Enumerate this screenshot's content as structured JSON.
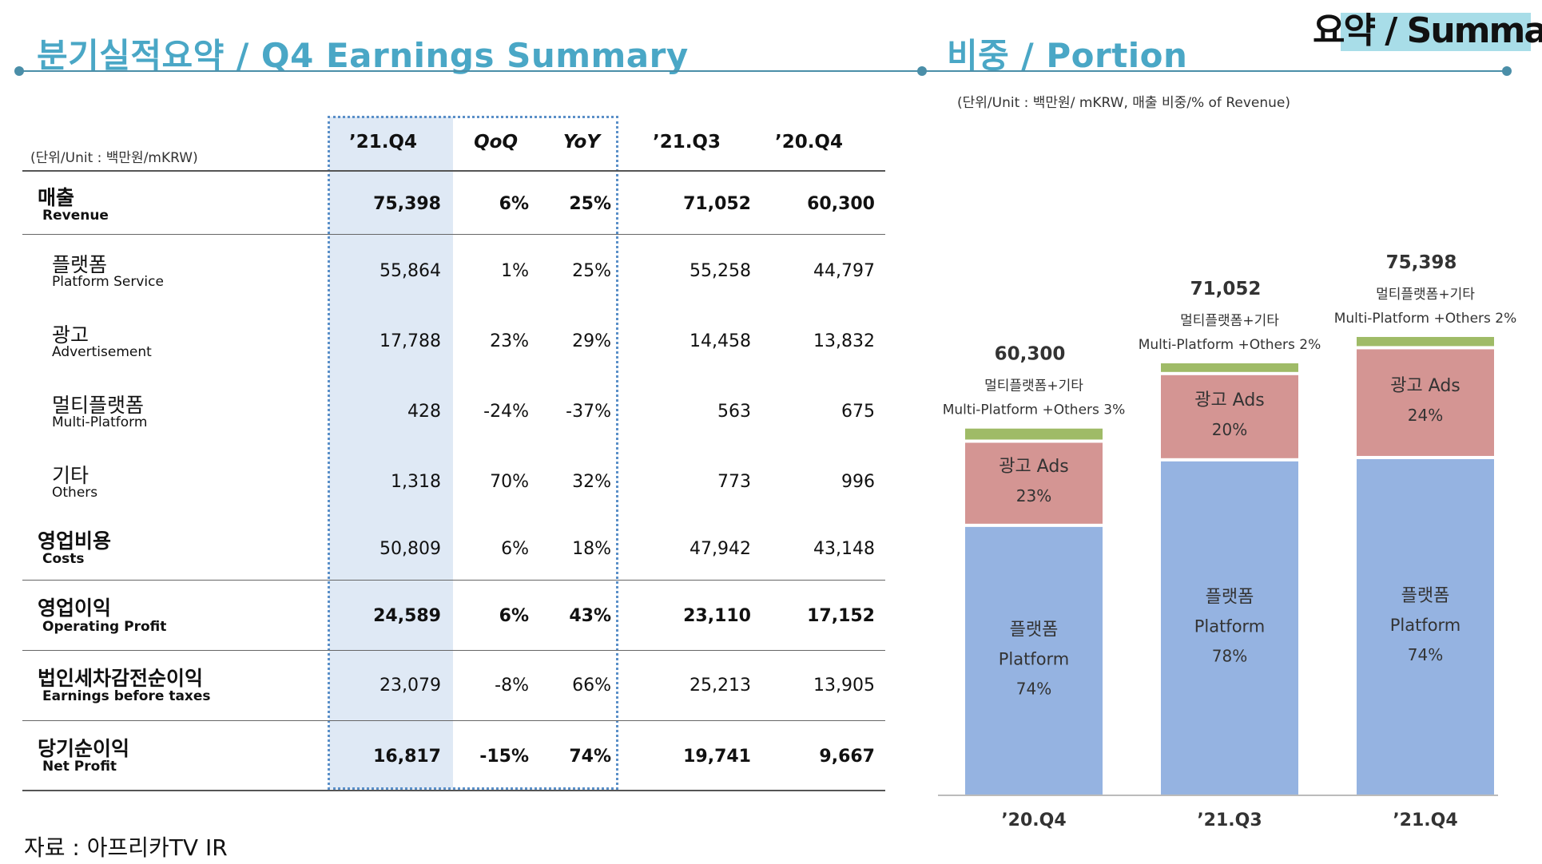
{
  "header": {
    "left_title": "분기실적요약 / Q4 Earnings Summary",
    "right_title": "비중 / Portion",
    "corner_title": "요약 / Summary"
  },
  "table": {
    "unit_note": "(단위/Unit : 백만원/mKRW)",
    "columns": [
      "’21.Q4",
      "QoQ",
      "YoY",
      "’21.Q3",
      "’20.Q4"
    ],
    "rows": [
      {
        "ko": "매출",
        "en": "Revenue",
        "values": [
          "75,398",
          "6%",
          "25%",
          "71,052",
          "60,300"
        ]
      },
      {
        "ko": "플랫폼",
        "en": "Platform Service",
        "values": [
          "55,864",
          "1%",
          "25%",
          "55,258",
          "44,797"
        ]
      },
      {
        "ko": "광고",
        "en": "Advertisement",
        "values": [
          "17,788",
          "23%",
          "29%",
          "14,458",
          "13,832"
        ]
      },
      {
        "ko": "멀티플랫폼",
        "en": "Multi-Platform",
        "values": [
          "428",
          "-24%",
          "-37%",
          "563",
          "675"
        ]
      },
      {
        "ko": "기타",
        "en": "Others",
        "values": [
          "1,318",
          "70%",
          "32%",
          "773",
          "996"
        ]
      },
      {
        "ko": "영업비용",
        "en": "Costs",
        "values": [
          "50,809",
          "6%",
          "18%",
          "47,942",
          "43,148"
        ]
      },
      {
        "ko": "영업이익",
        "en": "Operating Profit",
        "values": [
          "24,589",
          "6%",
          "43%",
          "23,110",
          "17,152"
        ]
      },
      {
        "ko": "법인세차감전순이익",
        "en": "Earnings before taxes",
        "values": [
          "23,079",
          "-8%",
          "66%",
          "25,213",
          "13,905"
        ]
      },
      {
        "ko": "당기순이익",
        "en": "Net Profit",
        "values": [
          "16,817",
          "-15%",
          "74%",
          "19,741",
          "9,667"
        ]
      }
    ]
  },
  "source": "자료 : 아프리카TV IR",
  "chart_data": {
    "type": "bar",
    "stacked": true,
    "unit_note": "(단위/Unit : 백만원/ mKRW, 매출 비중/% of Revenue)",
    "categories": [
      "’20.Q4",
      "’21.Q3",
      "’21.Q4"
    ],
    "totals": [
      "60,300",
      "71,052",
      "75,398"
    ],
    "total_values": [
      60300,
      71052,
      75398
    ],
    "ylim": [
      0,
      80000
    ],
    "series": [
      {
        "name_ko": "플랫폼",
        "name_en": "Platform",
        "color": "#95b3e1",
        "percent": [
          74,
          78,
          74
        ],
        "labels": [
          "74%",
          "78%",
          "74%"
        ]
      },
      {
        "name_ko": "광고 Ads",
        "name_en": "Ads",
        "color": "#d49593",
        "percent": [
          23,
          20,
          24
        ],
        "labels": [
          "23%",
          "20%",
          "24%"
        ]
      },
      {
        "name_ko": "멀티플랫폼+기타",
        "name_en": "Multi-Platform +Others",
        "color": "#9fbb67",
        "percent": [
          3,
          2,
          2
        ],
        "labels": [
          "3%",
          "2%",
          "2%"
        ]
      }
    ]
  }
}
